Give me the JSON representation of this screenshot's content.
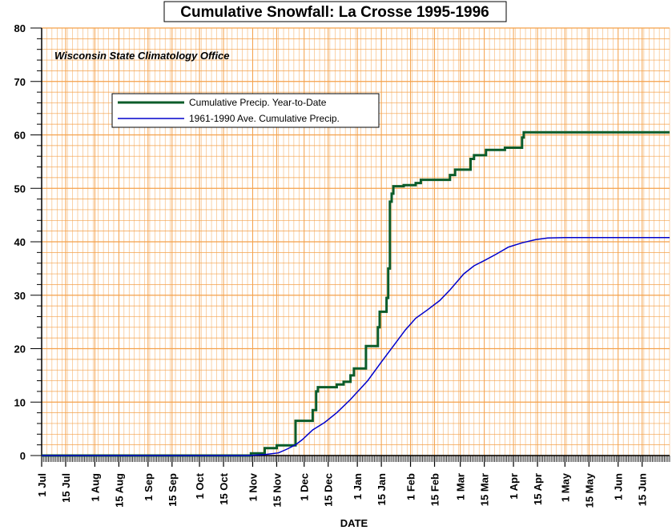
{
  "chart_data": {
    "type": "line",
    "title": "Cumulative Snowfall: La Crosse 1995-1996",
    "annotation": "Wisconsin State Climatology Office",
    "xlabel": "DATE",
    "ylabel": "",
    "ylim": [
      0,
      80
    ],
    "yticks": [
      0,
      10,
      20,
      30,
      40,
      50,
      60,
      70,
      80
    ],
    "x_unit": "days since 1 Jul",
    "xlim": [
      0,
      366
    ],
    "xticks": [
      {
        "label": "1 Jul",
        "day": 0
      },
      {
        "label": "15 Jul",
        "day": 14
      },
      {
        "label": "1 Aug",
        "day": 31
      },
      {
        "label": "15 Aug",
        "day": 45
      },
      {
        "label": "1 Sep",
        "day": 62
      },
      {
        "label": "15 Sep",
        "day": 76
      },
      {
        "label": "1 Oct",
        "day": 92
      },
      {
        "label": "15 Oct",
        "day": 106
      },
      {
        "label": "1 Nov",
        "day": 123
      },
      {
        "label": "15 Nov",
        "day": 137
      },
      {
        "label": "1 Dec",
        "day": 153
      },
      {
        "label": "15 Dec",
        "day": 167
      },
      {
        "label": "1 Jan",
        "day": 184
      },
      {
        "label": "15 Jan",
        "day": 198
      },
      {
        "label": "1 Feb",
        "day": 215
      },
      {
        "label": "15 Feb",
        "day": 229
      },
      {
        "label": "1 Mar",
        "day": 244
      },
      {
        "label": "15 Mar",
        "day": 258
      },
      {
        "label": "1 Apr",
        "day": 275
      },
      {
        "label": "15 Apr",
        "day": 289
      },
      {
        "label": "1 May",
        "day": 305
      },
      {
        "label": "15 May",
        "day": 319
      },
      {
        "label": "1 Jun",
        "day": 336
      },
      {
        "label": "15 Jun",
        "day": 350
      }
    ],
    "grid": true,
    "legend_position": "upper-left",
    "series": [
      {
        "name": "Cumulative Precip. Year-to-Date",
        "color": "#0b5c2a",
        "step": true,
        "points": [
          [
            0,
            0
          ],
          [
            122,
            0
          ],
          [
            122,
            0.4
          ],
          [
            130,
            0.4
          ],
          [
            130,
            1.4
          ],
          [
            137,
            1.4
          ],
          [
            137,
            1.9
          ],
          [
            148,
            1.9
          ],
          [
            148,
            6.5
          ],
          [
            158,
            6.5
          ],
          [
            158,
            8.5
          ],
          [
            160,
            8.5
          ],
          [
            160,
            12.0
          ],
          [
            161,
            12.0
          ],
          [
            161,
            12.8
          ],
          [
            172,
            12.8
          ],
          [
            172,
            13.3
          ],
          [
            176,
            13.3
          ],
          [
            176,
            13.8
          ],
          [
            180,
            13.8
          ],
          [
            180,
            15.0
          ],
          [
            182,
            15.0
          ],
          [
            182,
            16.3
          ],
          [
            189,
            16.3
          ],
          [
            189,
            20.5
          ],
          [
            196,
            20.5
          ],
          [
            196,
            24.0
          ],
          [
            197,
            24.0
          ],
          [
            197,
            26.9
          ],
          [
            201,
            26.9
          ],
          [
            201,
            29.5
          ],
          [
            202,
            29.5
          ],
          [
            202,
            35.0
          ],
          [
            203,
            35.0
          ],
          [
            203,
            47.5
          ],
          [
            204,
            47.5
          ],
          [
            204,
            49.0
          ],
          [
            205,
            49.0
          ],
          [
            205,
            50.4
          ],
          [
            211,
            50.4
          ],
          [
            211,
            50.6
          ],
          [
            218,
            50.6
          ],
          [
            218,
            51.0
          ],
          [
            221,
            51.0
          ],
          [
            221,
            51.6
          ],
          [
            238,
            51.6
          ],
          [
            238,
            52.5
          ],
          [
            241,
            52.5
          ],
          [
            241,
            53.5
          ],
          [
            250,
            53.5
          ],
          [
            250,
            55.5
          ],
          [
            252,
            55.5
          ],
          [
            252,
            56.2
          ],
          [
            259,
            56.2
          ],
          [
            259,
            57.2
          ],
          [
            270,
            57.2
          ],
          [
            270,
            57.6
          ],
          [
            280,
            57.6
          ],
          [
            280,
            59.5
          ],
          [
            281,
            59.5
          ],
          [
            281,
            60.5
          ],
          [
            366,
            60.5
          ]
        ]
      },
      {
        "name": "1961-1990 Ave. Cumulative Precip.",
        "color": "#0000cc",
        "step": false,
        "points": [
          [
            0,
            0
          ],
          [
            120,
            0
          ],
          [
            130,
            0.2
          ],
          [
            138,
            0.5
          ],
          [
            143,
            1.2
          ],
          [
            148,
            2.0
          ],
          [
            152,
            3.0
          ],
          [
            158,
            4.8
          ],
          [
            165,
            6.2
          ],
          [
            172,
            8.0
          ],
          [
            180,
            10.5
          ],
          [
            190,
            14.0
          ],
          [
            198,
            17.5
          ],
          [
            205,
            20.5
          ],
          [
            212,
            23.5
          ],
          [
            218,
            25.7
          ],
          [
            225,
            27.3
          ],
          [
            232,
            29.0
          ],
          [
            238,
            31.0
          ],
          [
            242,
            32.5
          ],
          [
            246,
            34.0
          ],
          [
            252,
            35.5
          ],
          [
            258,
            36.5
          ],
          [
            265,
            37.7
          ],
          [
            272,
            39.0
          ],
          [
            280,
            39.8
          ],
          [
            288,
            40.4
          ],
          [
            295,
            40.7
          ],
          [
            305,
            40.8
          ],
          [
            366,
            40.8
          ]
        ]
      }
    ]
  },
  "colors": {
    "grid": "#f4a14a",
    "axis": "#000000",
    "background": "#ffffff"
  }
}
